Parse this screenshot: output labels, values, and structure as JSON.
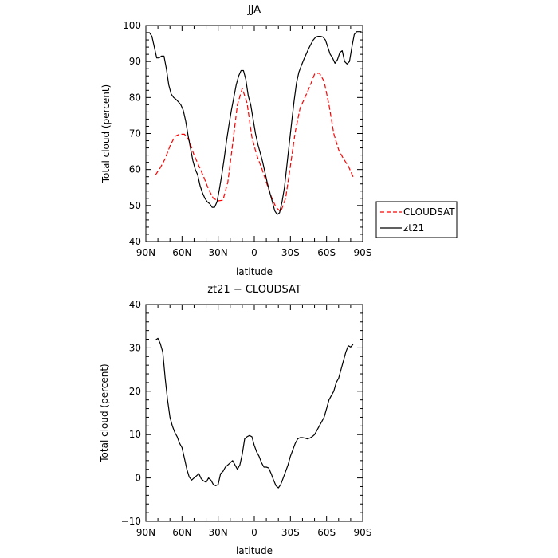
{
  "chart_data": [
    {
      "type": "line",
      "title": "JJA",
      "xlabel": "latitude",
      "ylabel": "Total cloud (percent)",
      "xlim": [
        90,
        -90
      ],
      "ylim": [
        40,
        100
      ],
      "x_ticks": [
        90,
        60,
        30,
        0,
        -30,
        -60,
        -90
      ],
      "x_tick_labels": [
        "90N",
        "60N",
        "30N",
        "0",
        "30S",
        "60S",
        "90S"
      ],
      "y_ticks": [
        40,
        50,
        60,
        70,
        80,
        90,
        100
      ],
      "y_tick_labels": [
        "40",
        "50",
        "60",
        "70",
        "80",
        "90",
        "100"
      ],
      "legend": "right",
      "series": [
        {
          "name": "CLOUDSAT",
          "color": "#ff0000",
          "dash": "dashed",
          "x": [
            82,
            78,
            74,
            70,
            66,
            62,
            58,
            54,
            50,
            46,
            42,
            38,
            34,
            30,
            26,
            22,
            18,
            14,
            10,
            6,
            2,
            -2,
            -6,
            -10,
            -14,
            -18,
            -22,
            -26,
            -30,
            -34,
            -38,
            -42,
            -46,
            -50,
            -54,
            -58,
            -62,
            -66,
            -70,
            -74,
            -78,
            -82
          ],
          "y": [
            58.5,
            60.5,
            63,
            66.5,
            69.2,
            69.8,
            69.8,
            68,
            64,
            61,
            58,
            54.5,
            52,
            51.3,
            51.5,
            56.5,
            67,
            78,
            82.5,
            78.5,
            69,
            64,
            60.5,
            56.5,
            52.5,
            49.5,
            48.3,
            52,
            61,
            70.5,
            77,
            80,
            83,
            86.5,
            86.8,
            84.5,
            78,
            70,
            65.5,
            63,
            61,
            58
          ]
        },
        {
          "name": "zt21",
          "color": "#000000",
          "dash": "solid",
          "x": [
            89,
            87,
            85,
            83,
            81,
            79,
            77,
            75,
            73,
            71,
            69,
            67,
            65,
            63,
            61,
            59,
            57,
            55,
            53,
            51,
            49,
            47,
            45,
            43,
            41,
            39,
            37,
            35,
            33,
            31,
            29,
            27,
            25,
            23,
            21,
            19,
            17,
            15,
            13,
            11,
            9,
            7,
            5,
            3,
            1,
            -1,
            -3,
            -5,
            -7,
            -9,
            -11,
            -13,
            -15,
            -17,
            -19,
            -21,
            -23,
            -25,
            -27,
            -29,
            -31,
            -33,
            -35,
            -37,
            -39,
            -41,
            -43,
            -45,
            -47,
            -49,
            -51,
            -53,
            -55,
            -57,
            -59,
            -61,
            -63,
            -65,
            -67,
            -69,
            -71,
            -73,
            -75,
            -77,
            -79,
            -81,
            -83,
            -85,
            -87,
            -89
          ],
          "y": [
            98,
            98,
            97,
            94,
            91,
            91,
            91.5,
            91.5,
            88,
            83.5,
            81,
            80,
            79.5,
            78.8,
            78,
            76.5,
            73.5,
            69.5,
            66,
            62.5,
            60,
            58.5,
            55.5,
            53.5,
            52,
            51,
            50.5,
            49.5,
            49.5,
            51,
            54.5,
            58.5,
            63,
            68,
            72.5,
            76.5,
            80,
            83.5,
            86,
            87.5,
            87.5,
            85,
            80.5,
            78,
            74,
            70,
            67,
            64.5,
            62,
            59,
            56,
            53.5,
            51,
            48.5,
            47.5,
            48,
            51,
            55,
            61,
            67,
            73,
            79,
            84,
            87,
            88.8,
            90.5,
            92,
            93.5,
            94.8,
            96,
            96.8,
            97,
            97,
            96.8,
            96,
            94,
            92,
            91,
            89.5,
            90.5,
            92.5,
            93,
            90,
            89.3,
            90,
            94,
            97.5,
            98.3,
            98.3,
            98.3
          ]
        }
      ]
    },
    {
      "type": "line",
      "title": "zt21 − CLOUDSAT",
      "xlabel": "latitude",
      "ylabel": "Total cloud (percent)",
      "xlim": [
        90,
        -90
      ],
      "ylim": [
        -10,
        40
      ],
      "x_ticks": [
        90,
        60,
        30,
        0,
        -30,
        -60,
        -90
      ],
      "x_tick_labels": [
        "90N",
        "60N",
        "30N",
        "0",
        "30S",
        "60S",
        "90S"
      ],
      "y_ticks": [
        -10,
        0,
        10,
        20,
        30,
        40
      ],
      "y_tick_labels": [
        "−10",
        "0",
        "10",
        "20",
        "30",
        "40"
      ],
      "series": [
        {
          "color": "#000000",
          "dash": "solid",
          "x": [
            82,
            80,
            78,
            76,
            74,
            72,
            70,
            68,
            66,
            64,
            62,
            60,
            58,
            56,
            54,
            52,
            50,
            48,
            46,
            44,
            42,
            40,
            38,
            36,
            34,
            32,
            30,
            28,
            26,
            24,
            22,
            20,
            18,
            16,
            14,
            12,
            10,
            8,
            6,
            4,
            2,
            0,
            -2,
            -4,
            -6,
            -8,
            -10,
            -12,
            -14,
            -16,
            -18,
            -20,
            -22,
            -24,
            -26,
            -28,
            -30,
            -32,
            -34,
            -36,
            -38,
            -40,
            -42,
            -44,
            -46,
            -48,
            -50,
            -52,
            -54,
            -56,
            -58,
            -60,
            -62,
            -64,
            -66,
            -68,
            -70,
            -72,
            -74,
            -76,
            -78,
            -80,
            -82
          ],
          "y": [
            31.8,
            32.2,
            31,
            29,
            23,
            18,
            14,
            12,
            10.5,
            9.5,
            8,
            7,
            4.5,
            2,
            0.2,
            -0.5,
            0,
            0.5,
            1,
            -0.2,
            -0.7,
            -1,
            0,
            -0.5,
            -1.5,
            -1.8,
            -1.5,
            1,
            1.5,
            2.5,
            3,
            3.5,
            4,
            3,
            2,
            3,
            5.5,
            9,
            9.5,
            9.8,
            9.5,
            7.5,
            6,
            5,
            3.5,
            2.5,
            2.5,
            2.3,
            1,
            -0.5,
            -1.8,
            -2.3,
            -1.5,
            0,
            1.5,
            3,
            5,
            6.5,
            8,
            9,
            9.3,
            9.3,
            9.2,
            9,
            9.2,
            9.5,
            10,
            11,
            12,
            13,
            14,
            16,
            18,
            19,
            20,
            22,
            23,
            25,
            27,
            29,
            30.5,
            30.2,
            30.8
          ]
        }
      ]
    }
  ]
}
